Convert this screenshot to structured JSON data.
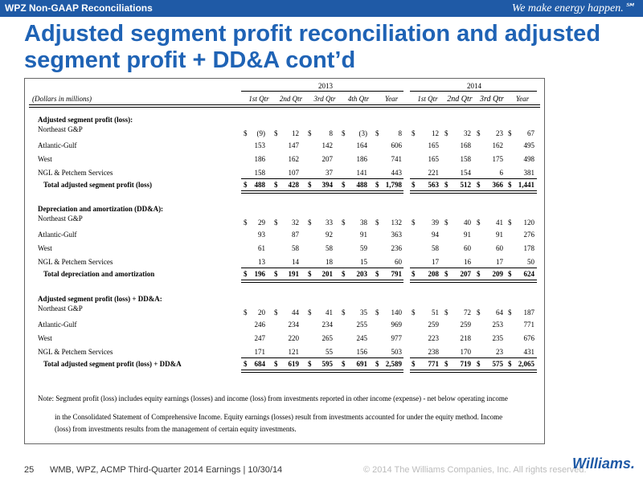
{
  "header": {
    "section": "WPZ Non-GAAP Reconciliations",
    "tagline": "We make energy happen.℠"
  },
  "title": "Adjusted segment profit reconciliation and adjusted segment profit + DD&A cont’d",
  "table": {
    "currency": "$",
    "units_note": "(Dollars in millions)",
    "years": [
      "2013",
      "2014"
    ],
    "columns": [
      "1st Qtr",
      "2nd Qtr",
      "3rd Qtr",
      "4th Qtr",
      "Year",
      "1st Qtr",
      "2nd Qtr",
      "3rd Qtr",
      "Year"
    ],
    "sections": [
      {
        "heading": "Adjusted segment profit (loss):",
        "rows": [
          {
            "label": "Northeast G&P",
            "values": [
              "(9)",
              "12",
              "8",
              "(3)",
              "8",
              "12",
              "32",
              "23",
              "67"
            ]
          },
          {
            "label": "Atlantic-Gulf",
            "values": [
              "153",
              "147",
              "142",
              "164",
              "606",
              "165",
              "168",
              "162",
              "495"
            ]
          },
          {
            "label": "West",
            "values": [
              "186",
              "162",
              "207",
              "186",
              "741",
              "165",
              "158",
              "175",
              "498"
            ]
          },
          {
            "label": "NGL & Petchem Services",
            "values": [
              "158",
              "107",
              "37",
              "141",
              "443",
              "221",
              "154",
              "6",
              "381"
            ]
          }
        ],
        "total": {
          "label": "Total adjusted segment profit (loss)",
          "values": [
            "488",
            "428",
            "394",
            "488",
            "1,798",
            "563",
            "512",
            "366",
            "1,441"
          ]
        }
      },
      {
        "heading": "Depreciation and amortization (DD&A):",
        "rows": [
          {
            "label": "Northeast G&P",
            "values": [
              "29",
              "32",
              "33",
              "38",
              "132",
              "39",
              "40",
              "41",
              "120"
            ]
          },
          {
            "label": "Atlantic-Gulf",
            "values": [
              "93",
              "87",
              "92",
              "91",
              "363",
              "94",
              "91",
              "91",
              "276"
            ]
          },
          {
            "label": "West",
            "values": [
              "61",
              "58",
              "58",
              "59",
              "236",
              "58",
              "60",
              "60",
              "178"
            ]
          },
          {
            "label": "NGL & Petchem Services",
            "values": [
              "13",
              "14",
              "18",
              "15",
              "60",
              "17",
              "16",
              "17",
              "50"
            ]
          }
        ],
        "total": {
          "label": "Total depreciation and amortization",
          "values": [
            "196",
            "191",
            "201",
            "203",
            "791",
            "208",
            "207",
            "209",
            "624"
          ]
        }
      },
      {
        "heading": "Adjusted segment profit (loss) + DD&A:",
        "rows": [
          {
            "label": "Northeast G&P",
            "values": [
              "20",
              "44",
              "41",
              "35",
              "140",
              "51",
              "72",
              "64",
              "187"
            ]
          },
          {
            "label": "Atlantic-Gulf",
            "values": [
              "246",
              "234",
              "234",
              "255",
              "969",
              "259",
              "259",
              "253",
              "771"
            ]
          },
          {
            "label": "West",
            "values": [
              "247",
              "220",
              "265",
              "245",
              "977",
              "223",
              "218",
              "235",
              "676"
            ]
          },
          {
            "label": "NGL & Petchem Services",
            "values": [
              "171",
              "121",
              "55",
              "156",
              "503",
              "238",
              "170",
              "23",
              "431"
            ]
          }
        ],
        "total": {
          "label": "Total adjusted segment profit (loss) + DD&A",
          "values": [
            "684",
            "619",
            "595",
            "691",
            "2,589",
            "771",
            "719",
            "575",
            "2,065"
          ]
        }
      }
    ]
  },
  "note": [
    "Note: Segment profit (loss) includes equity earnings (losses) and income (loss) from investments reported in other income (expense) - net below operating income",
    "in the Consolidated Statement of Comprehensive Income. Equity earnings (losses) result from investments accounted for under the equity method. Income",
    "(loss) from investments results from the management of certain equity investments."
  ],
  "footer": {
    "page": "25",
    "text": "WMB, WPZ, ACMP Third-Quarter 2014 Earnings  |  10/30/14",
    "copyright": "© 2014 The Williams Companies, Inc. All rights reserved.",
    "logo": "Williams."
  }
}
